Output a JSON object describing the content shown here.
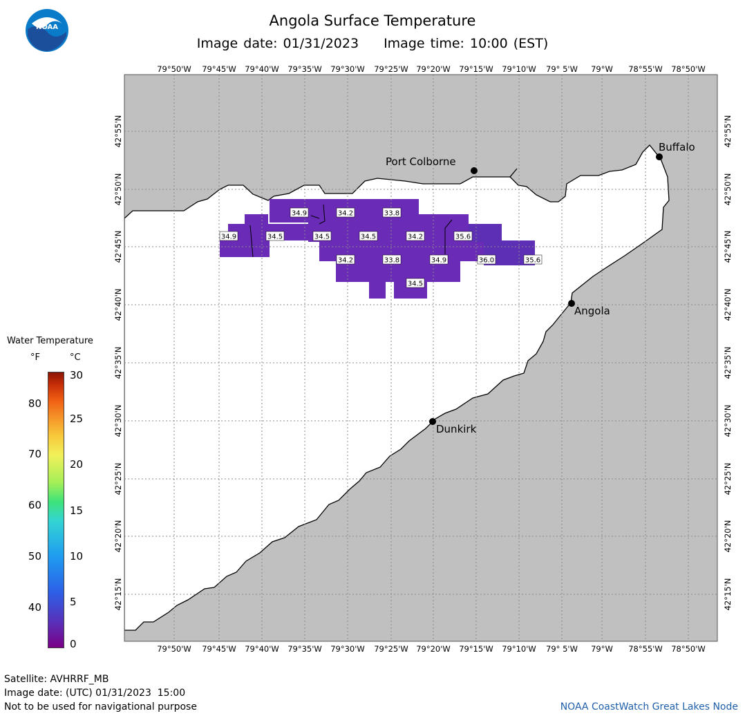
{
  "title": "Angola Surface Temperature",
  "image_date_label": "Image date: 01/31/2023",
  "image_time_label": "Image time: 10:00 (EST)",
  "lon_labels": [
    "79°50'W",
    "79°45'W",
    "79°40'W",
    "79°35'W",
    "79°30'W",
    "79°25'W",
    "79°20'W",
    "79°15'W",
    "79°10'W",
    "79° 5'W",
    "79°W",
    "78°55'W",
    "78°50'W"
  ],
  "lat_labels": [
    "42°55'N",
    "42°50'N",
    "42°45'N",
    "42°40'N",
    "42°35'N",
    "42°30'N",
    "42°25'N",
    "42°20'N",
    "42°15'N"
  ],
  "cities": [
    {
      "name": "Port Colborne"
    },
    {
      "name": "Buffalo"
    },
    {
      "name": "Angola"
    },
    {
      "name": "Dunkirk"
    }
  ],
  "temperature_labels": [
    "34.9",
    "34.2",
    "33.8",
    "34.9",
    "34.5",
    "34.5",
    "34.5",
    "34.2",
    "35.6",
    "34.2",
    "33.8",
    "34.9",
    "36.0",
    "35.6",
    "34.5"
  ],
  "legend": {
    "title": "Water Temperature",
    "unit_f": "°F",
    "unit_c": "°C",
    "f_ticks": [
      "80",
      "70",
      "60",
      "50",
      "40"
    ],
    "c_ticks": [
      "30",
      "25",
      "20",
      "15",
      "10",
      "5",
      "0"
    ]
  },
  "footer": {
    "satellite": "Satellite: AVHRRF_MB",
    "utc_date": "Image date: (UTC) 01/31/2023  15:00",
    "disclaimer": "Not to be used for navigational purpose",
    "credit": "NOAA CoastWatch Great Lakes Node"
  },
  "colors": {
    "land": "#c0c0c0",
    "water": "#ffffff",
    "sst_purple": "#6a2bb6",
    "sst_violet": "#5c2fb5"
  },
  "icons": [
    "noaa-logo-icon"
  ]
}
